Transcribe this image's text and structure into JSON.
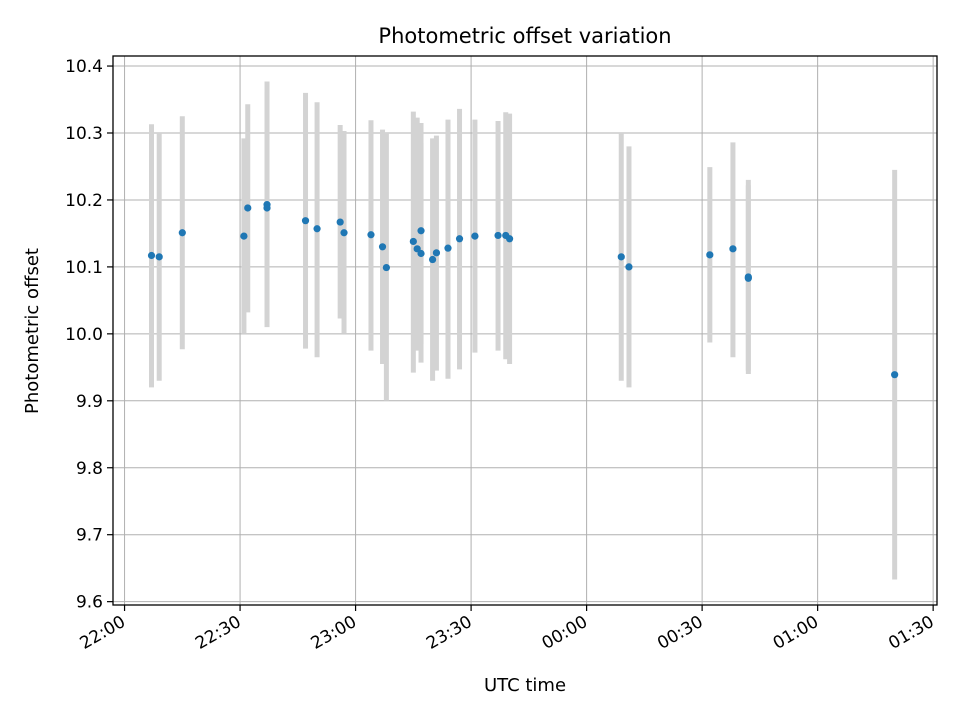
{
  "chart_data": {
    "type": "scatter",
    "title": "Photometric offset variation",
    "xlabel": "UTC time",
    "ylabel": "Photometric offset",
    "x_axis_kind": "time",
    "xlim": [
      "21:57",
      "01:31"
    ],
    "ylim": [
      9.595,
      10.415
    ],
    "x_ticks": [
      "22:00",
      "22:30",
      "23:00",
      "23:30",
      "00:00",
      "00:30",
      "01:00",
      "01:30"
    ],
    "y_ticks": [
      "9.6",
      "9.7",
      "9.8",
      "9.9",
      "10.0",
      "10.1",
      "10.2",
      "10.3",
      "10.4"
    ],
    "grid": true,
    "marker_color": "#1f77b4",
    "errorbar_color": "#d3d3d3",
    "points": [
      {
        "t": "22:07",
        "y": 10.117,
        "lo": 9.92,
        "hi": 10.313
      },
      {
        "t": "22:09",
        "y": 10.115,
        "lo": 9.93,
        "hi": 10.3
      },
      {
        "t": "22:15",
        "y": 10.151,
        "lo": 9.977,
        "hi": 10.325
      },
      {
        "t": "22:31",
        "y": 10.146,
        "lo": 10.0,
        "hi": 10.292
      },
      {
        "t": "22:32",
        "y": 10.188,
        "lo": 10.032,
        "hi": 10.343
      },
      {
        "t": "22:37",
        "y": 10.193,
        "lo": 10.01,
        "hi": 10.377
      },
      {
        "t": "22:37",
        "y": 10.188,
        "lo": 10.015,
        "hi": 10.36
      },
      {
        "t": "22:47",
        "y": 10.169,
        "lo": 9.978,
        "hi": 10.36
      },
      {
        "t": "22:50",
        "y": 10.157,
        "lo": 9.965,
        "hi": 10.346
      },
      {
        "t": "22:56",
        "y": 10.167,
        "lo": 10.023,
        "hi": 10.312
      },
      {
        "t": "22:57",
        "y": 10.151,
        "lo": 10.0,
        "hi": 10.303
      },
      {
        "t": "23:04",
        "y": 10.148,
        "lo": 9.975,
        "hi": 10.319
      },
      {
        "t": "23:07",
        "y": 10.13,
        "lo": 9.955,
        "hi": 10.305
      },
      {
        "t": "23:08",
        "y": 10.099,
        "lo": 9.9,
        "hi": 10.3
      },
      {
        "t": "23:15",
        "y": 10.138,
        "lo": 9.942,
        "hi": 10.332
      },
      {
        "t": "23:16",
        "y": 10.127,
        "lo": 9.975,
        "hi": 10.323
      },
      {
        "t": "23:17",
        "y": 10.154,
        "lo": 9.985,
        "hi": 10.315
      },
      {
        "t": "23:17",
        "y": 10.12,
        "lo": 9.957,
        "hi": 10.285
      },
      {
        "t": "23:20",
        "y": 10.111,
        "lo": 9.93,
        "hi": 10.292
      },
      {
        "t": "23:21",
        "y": 10.121,
        "lo": 9.945,
        "hi": 10.296
      },
      {
        "t": "23:24",
        "y": 10.128,
        "lo": 9.933,
        "hi": 10.32
      },
      {
        "t": "23:27",
        "y": 10.142,
        "lo": 9.947,
        "hi": 10.336
      },
      {
        "t": "23:31",
        "y": 10.146,
        "lo": 9.972,
        "hi": 10.32
      },
      {
        "t": "23:37",
        "y": 10.147,
        "lo": 9.975,
        "hi": 10.318
      },
      {
        "t": "23:39",
        "y": 10.147,
        "lo": 9.962,
        "hi": 10.331
      },
      {
        "t": "23:40",
        "y": 10.142,
        "lo": 9.955,
        "hi": 10.329
      },
      {
        "t": "00:09",
        "y": 10.115,
        "lo": 9.93,
        "hi": 10.3
      },
      {
        "t": "00:11",
        "y": 10.1,
        "lo": 9.92,
        "hi": 10.28
      },
      {
        "t": "00:32",
        "y": 10.118,
        "lo": 9.987,
        "hi": 10.249
      },
      {
        "t": "00:38",
        "y": 10.127,
        "lo": 9.965,
        "hi": 10.286
      },
      {
        "t": "00:42",
        "y": 10.085,
        "lo": 9.94,
        "hi": 10.23
      },
      {
        "t": "00:42",
        "y": 10.083,
        "lo": 9.945,
        "hi": 10.222
      },
      {
        "t": "01:20",
        "y": 9.939,
        "lo": 9.633,
        "hi": 10.245
      }
    ]
  }
}
